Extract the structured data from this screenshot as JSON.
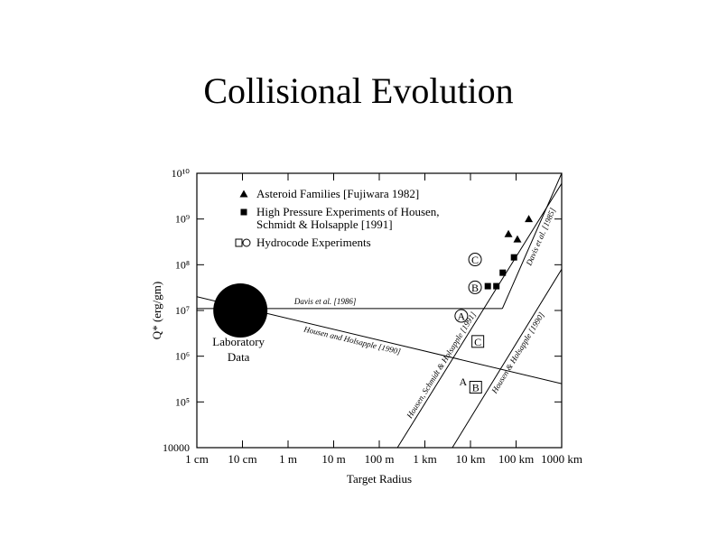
{
  "slide_title": "Collisional Evolution",
  "chart_data": {
    "type": "scatter",
    "x_label": "Target Radius",
    "y_label": "Q* (erg/gm)",
    "log_x": true,
    "log_y": true,
    "xlim": [
      0.01,
      1000000
    ],
    "ylim": [
      10000,
      10000000000
    ],
    "xticks": [
      {
        "value": 0.01,
        "label": "1 cm"
      },
      {
        "value": 0.1,
        "label": "10 cm"
      },
      {
        "value": 1,
        "label": "1 m"
      },
      {
        "value": 10,
        "label": "10 m"
      },
      {
        "value": 100,
        "label": "100 m"
      },
      {
        "value": 1000,
        "label": "1 km"
      },
      {
        "value": 10000,
        "label": "10 km"
      },
      {
        "value": 100000,
        "label": "100 km"
      },
      {
        "value": 1000000,
        "label": "1000 km"
      }
    ],
    "yticks": [
      {
        "value": 10000,
        "label": "10000"
      },
      {
        "value": 100000,
        "label": "10⁵"
      },
      {
        "value": 1000000,
        "label": "10⁶"
      },
      {
        "value": 10000000,
        "label": "10⁷"
      },
      {
        "value": 100000000,
        "label": "10⁸"
      },
      {
        "value": 1000000000,
        "label": "10⁹"
      },
      {
        "value": 10000000000,
        "label": "10¹⁰"
      }
    ],
    "series": [
      {
        "name": "Asteroid Families [Fujiwara 1982]",
        "marker": "triangle",
        "color": "#000000",
        "x": [
          68000,
          107000,
          190000
        ],
        "y": [
          470000000,
          360000000,
          1000000000
        ]
      },
      {
        "name": "High Pressure Experiments of Housen, Schmidt & Holsapple [1991]",
        "marker": "square",
        "color": "#000000",
        "x": [
          24000,
          37000,
          51000,
          90000
        ],
        "y": [
          34000000,
          34000000,
          67000000,
          145000000
        ]
      },
      {
        "name": "Hydrocode Experiments",
        "marker": "open",
        "color": "#000000",
        "markers": [
          "circle",
          "circle",
          "circle",
          "square",
          "plain",
          "square"
        ],
        "point_labels": [
          "C",
          "B",
          "A",
          "C",
          "A",
          "B"
        ],
        "x": [
          12600,
          12600,
          6300,
          14500,
          6900,
          13000
        ],
        "y": [
          130000000,
          32000000,
          7600000,
          2100000,
          280000,
          210000
        ]
      }
    ],
    "lines": [
      {
        "name": "Davis et al. [1986]",
        "x": [
          0.01,
          50000
        ],
        "y": [
          11000000,
          11000000
        ]
      },
      {
        "name": "Davis et al. [1985]",
        "x": [
          50000,
          1000000
        ],
        "y": [
          11000000,
          10000000000
        ]
      },
      {
        "name": "Housen and Holsapple [1990]",
        "x": [
          0.01,
          1000000
        ],
        "y": [
          20000000,
          250000
        ]
      },
      {
        "name": "Housen, Schmidt & Holsapple [1991]",
        "x": [
          250,
          1000000
        ],
        "y": [
          10000,
          6000000000
        ]
      },
      {
        "name": "Housen & Holsapple [1990]",
        "x": [
          4000,
          1000000
        ],
        "y": [
          10000,
          80000000
        ]
      }
    ],
    "lab_data": {
      "label_lines": [
        "Laboratory",
        "Data"
      ],
      "x": 0.09,
      "y": 10000000
    }
  }
}
